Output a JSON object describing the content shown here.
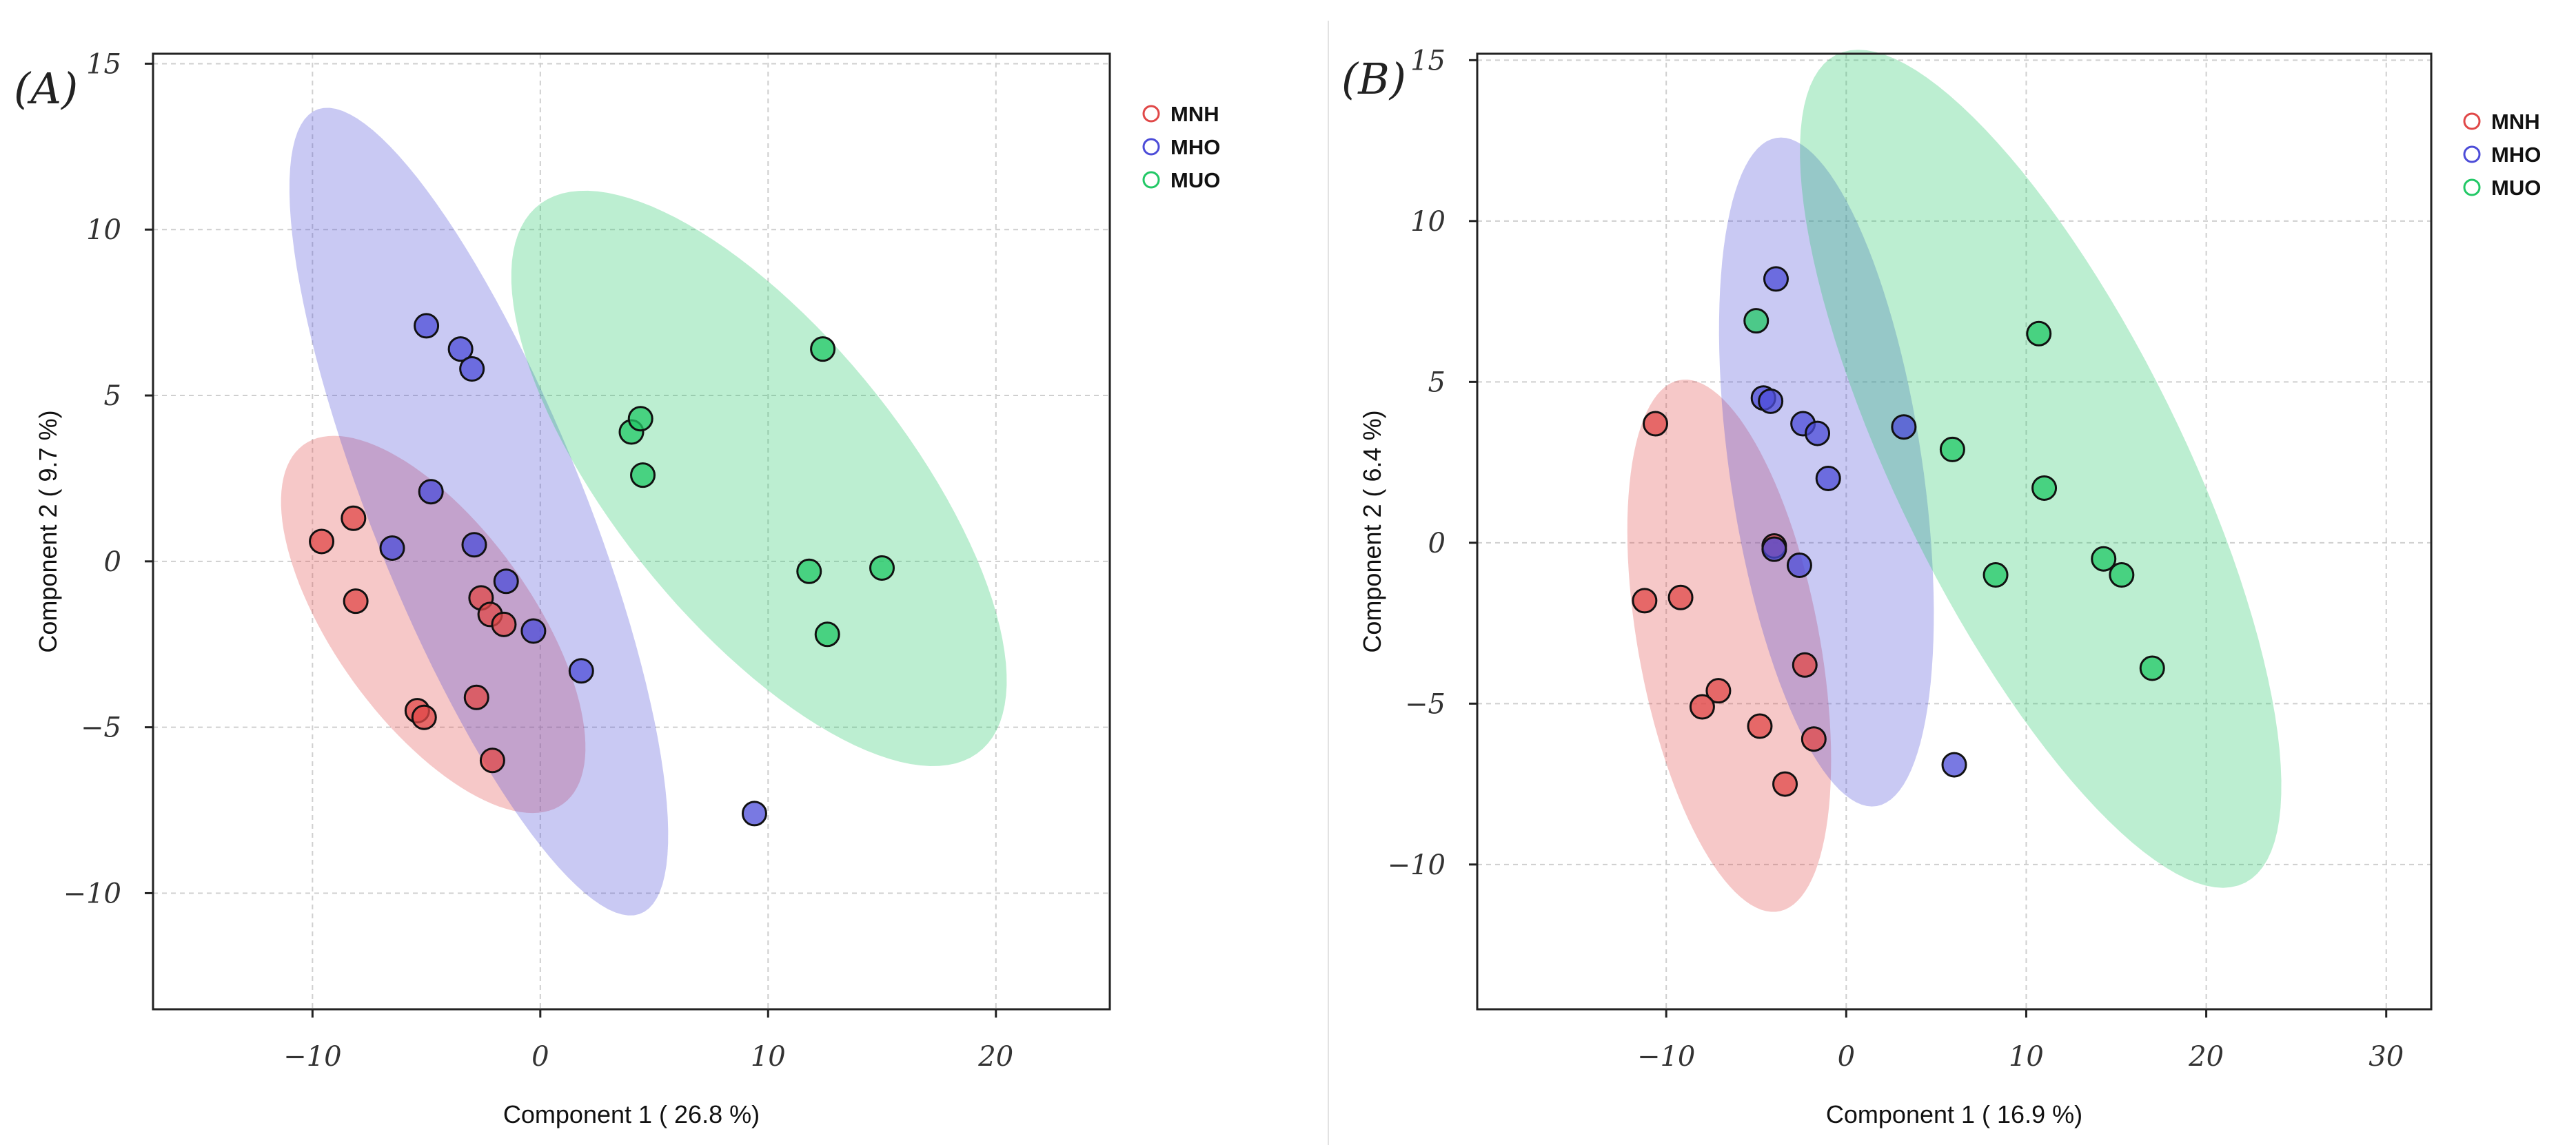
{
  "colors": {
    "MNH": "#e04848",
    "MHO": "#4c4cd8",
    "MUO": "#22c866"
  },
  "chart_data": [
    {
      "type": "scatter",
      "panel_label": "(A)",
      "xlabel": "Component 1 ( 26.8 %)",
      "ylabel": "Component 2 ( 9.7 %)",
      "xlim": [
        -17,
        25
      ],
      "ylim": [
        -13.5,
        15.3
      ],
      "xticks": [
        -10,
        0,
        10,
        20
      ],
      "yticks": [
        -10,
        -5,
        0,
        5,
        10,
        15
      ],
      "xtick_labels": [
        "−10",
        "0",
        "10",
        "20"
      ],
      "ytick_labels": [
        "−10",
        "−5",
        "0",
        "5",
        "10",
        "15"
      ],
      "grid": true,
      "legend_position": "top-right",
      "series": [
        {
          "name": "MNH",
          "points": [
            [
              -9.6,
              0.6
            ],
            [
              -8.2,
              1.3
            ],
            [
              -8.1,
              -1.2
            ],
            [
              -5.4,
              -4.5
            ],
            [
              -5.1,
              -4.7
            ],
            [
              -2.8,
              -4.1
            ],
            [
              -2.6,
              -1.1
            ],
            [
              -2.2,
              -1.6
            ],
            [
              -2.1,
              -6.0
            ],
            [
              -1.6,
              -1.9
            ]
          ],
          "ellipse": {
            "cx": -4.7,
            "cy": -1.9,
            "rx": 8.0,
            "ry": 3.6,
            "angle_deg": -38
          }
        },
        {
          "name": "MHO",
          "points": [
            [
              -5.0,
              7.1
            ],
            [
              -3.5,
              6.4
            ],
            [
              -3.0,
              5.8
            ],
            [
              -4.8,
              2.1
            ],
            [
              -6.5,
              0.4
            ],
            [
              -2.9,
              0.5
            ],
            [
              -1.5,
              -0.6
            ],
            [
              -0.3,
              -2.1
            ],
            [
              1.8,
              -3.3
            ],
            [
              9.4,
              -7.6
            ]
          ],
          "ellipse": {
            "cx": -2.7,
            "cy": 1.5,
            "rx": 14.1,
            "ry": 4.3,
            "angle_deg": -58
          }
        },
        {
          "name": "MUO",
          "points": [
            [
              4.0,
              3.9
            ],
            [
              4.4,
              4.3
            ],
            [
              4.5,
              2.6
            ],
            [
              12.4,
              6.4
            ],
            [
              11.8,
              -0.3
            ],
            [
              15.0,
              -0.2
            ],
            [
              12.6,
              -2.2
            ]
          ],
          "ellipse": {
            "cx": 9.6,
            "cy": 2.5,
            "rx": 12.9,
            "ry": 5.2,
            "angle_deg": -36
          }
        }
      ]
    },
    {
      "type": "scatter",
      "panel_label": "(B)",
      "xlabel": "Component 1 ( 16.9 %)",
      "ylabel": "Component 2 ( 6.4 %)",
      "xlim": [
        -20.5,
        32.5
      ],
      "ylim": [
        -14.5,
        15.2
      ],
      "xticks": [
        -10,
        0,
        10,
        20,
        30
      ],
      "yticks": [
        -10,
        -5,
        0,
        5,
        10,
        15
      ],
      "xtick_labels": [
        "−10",
        "0",
        "10",
        "20",
        "30"
      ],
      "ytick_labels": [
        "−10",
        "−5",
        "0",
        "5",
        "10",
        "15"
      ],
      "grid": true,
      "legend_position": "top-right",
      "series": [
        {
          "name": "MNH",
          "points": [
            [
              -10.6,
              3.7
            ],
            [
              -11.2,
              -1.8
            ],
            [
              -9.2,
              -1.7
            ],
            [
              -7.1,
              -4.6
            ],
            [
              -8.0,
              -5.1
            ],
            [
              -4.8,
              -5.7
            ],
            [
              -1.8,
              -6.1
            ],
            [
              -3.4,
              -7.5
            ],
            [
              -2.3,
              -3.8
            ],
            [
              -4.0,
              -0.1
            ]
          ],
          "ellipse": {
            "cx": -6.5,
            "cy": -3.2,
            "rx": 8.8,
            "ry": 4.8,
            "angle_deg": -66
          }
        },
        {
          "name": "MHO",
          "points": [
            [
              -3.9,
              8.2
            ],
            [
              -4.6,
              4.5
            ],
            [
              -4.2,
              4.4
            ],
            [
              -2.4,
              3.7
            ],
            [
              -1.6,
              3.4
            ],
            [
              -1.0,
              2.0
            ],
            [
              3.2,
              3.6
            ],
            [
              -4.0,
              -0.2
            ],
            [
              -2.6,
              -0.7
            ],
            [
              6.0,
              -6.9
            ]
          ],
          "ellipse": {
            "cx": -1.1,
            "cy": 2.2,
            "rx": 10.8,
            "ry": 5.2,
            "angle_deg": -72
          }
        },
        {
          "name": "MUO",
          "points": [
            [
              -5.0,
              6.9
            ],
            [
              10.7,
              6.5
            ],
            [
              5.9,
              2.9
            ],
            [
              11.0,
              1.7
            ],
            [
              8.3,
              -1.0
            ],
            [
              14.3,
              -0.5
            ],
            [
              15.3,
              -1.0
            ],
            [
              17.0,
              -3.9
            ]
          ],
          "ellipse": {
            "cx": 10.8,
            "cy": 2.3,
            "rx": 17.5,
            "ry": 6.5,
            "angle_deg": -44
          }
        }
      ]
    }
  ]
}
